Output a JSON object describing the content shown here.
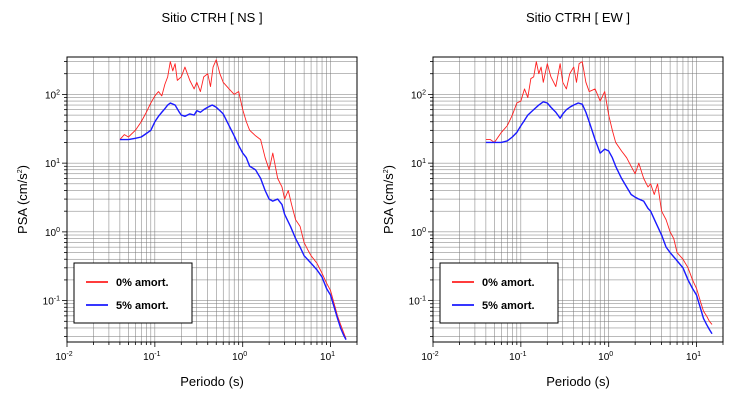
{
  "chart_data": [
    {
      "type": "line",
      "title": "Sitio CTRH [ NS ]",
      "xlabel": "Periodo (s)",
      "ylabel": "PSA (cm/s²)",
      "ylabel_base": "PSA (cm/s",
      "ylabel_sup": "2",
      "ylabel_close": ")",
      "xscale": "log",
      "yscale": "log",
      "xlim": [
        0.01,
        20
      ],
      "ylim": [
        0.025,
        350
      ],
      "grid": true,
      "legend_position": "bottom-left",
      "xticks": [
        {
          "base": "10",
          "exp": "-2"
        },
        {
          "base": "10",
          "exp": "-1"
        },
        {
          "base": "10",
          "exp": "0"
        },
        {
          "base": "10",
          "exp": "1"
        }
      ],
      "yticks": [
        {
          "base": "10",
          "exp": "-1"
        },
        {
          "base": "10",
          "exp": "0"
        },
        {
          "base": "10",
          "exp": "1"
        },
        {
          "base": "10",
          "exp": "2"
        }
      ],
      "series": [
        {
          "name": "0% amort.",
          "color": "#ff2020",
          "points": [
            [
              0.04,
              22
            ],
            [
              0.045,
              26
            ],
            [
              0.05,
              24
            ],
            [
              0.06,
              30
            ],
            [
              0.07,
              40
            ],
            [
              0.08,
              55
            ],
            [
              0.09,
              75
            ],
            [
              0.1,
              95
            ],
            [
              0.11,
              110
            ],
            [
              0.12,
              95
            ],
            [
              0.13,
              140
            ],
            [
              0.14,
              180
            ],
            [
              0.15,
              300
            ],
            [
              0.16,
              220
            ],
            [
              0.17,
              280
            ],
            [
              0.18,
              160
            ],
            [
              0.2,
              180
            ],
            [
              0.22,
              250
            ],
            [
              0.25,
              160
            ],
            [
              0.28,
              120
            ],
            [
              0.3,
              150
            ],
            [
              0.33,
              110
            ],
            [
              0.36,
              180
            ],
            [
              0.4,
              200
            ],
            [
              0.43,
              130
            ],
            [
              0.46,
              250
            ],
            [
              0.5,
              320
            ],
            [
              0.55,
              200
            ],
            [
              0.6,
              150
            ],
            [
              0.7,
              120
            ],
            [
              0.8,
              100
            ],
            [
              0.9,
              110
            ],
            [
              1.0,
              60
            ],
            [
              1.1,
              40
            ],
            [
              1.2,
              30
            ],
            [
              1.4,
              25
            ],
            [
              1.6,
              22
            ],
            [
              1.8,
              12
            ],
            [
              2.0,
              8
            ],
            [
              2.2,
              14
            ],
            [
              2.5,
              6
            ],
            [
              2.8,
              4.5
            ],
            [
              3.0,
              3
            ],
            [
              3.3,
              4
            ],
            [
              3.6,
              2.5
            ],
            [
              4.0,
              1.5
            ],
            [
              4.5,
              1.2
            ],
            [
              5.0,
              0.7
            ],
            [
              5.5,
              0.55
            ],
            [
              6.0,
              0.45
            ],
            [
              7.0,
              0.35
            ],
            [
              8.0,
              0.25
            ],
            [
              9.0,
              0.18
            ],
            [
              10,
              0.14
            ],
            [
              11,
              0.09
            ],
            [
              12,
              0.06
            ],
            [
              13,
              0.045
            ],
            [
              14,
              0.035
            ],
            [
              15,
              0.028
            ]
          ]
        },
        {
          "name": "5% amort.",
          "color": "#1a1aff",
          "points": [
            [
              0.04,
              22
            ],
            [
              0.05,
              22
            ],
            [
              0.06,
              23
            ],
            [
              0.07,
              24
            ],
            [
              0.08,
              27
            ],
            [
              0.09,
              30
            ],
            [
              0.1,
              40
            ],
            [
              0.11,
              48
            ],
            [
              0.12,
              55
            ],
            [
              0.13,
              62
            ],
            [
              0.14,
              70
            ],
            [
              0.15,
              75
            ],
            [
              0.17,
              70
            ],
            [
              0.19,
              55
            ],
            [
              0.2,
              50
            ],
            [
              0.22,
              48
            ],
            [
              0.25,
              52
            ],
            [
              0.28,
              50
            ],
            [
              0.3,
              58
            ],
            [
              0.33,
              55
            ],
            [
              0.36,
              60
            ],
            [
              0.4,
              65
            ],
            [
              0.45,
              70
            ],
            [
              0.5,
              65
            ],
            [
              0.55,
              58
            ],
            [
              0.6,
              52
            ],
            [
              0.7,
              35
            ],
            [
              0.8,
              25
            ],
            [
              0.9,
              18
            ],
            [
              1.0,
              14
            ],
            [
              1.1,
              12
            ],
            [
              1.2,
              9
            ],
            [
              1.4,
              8
            ],
            [
              1.6,
              6
            ],
            [
              1.8,
              4
            ],
            [
              2.0,
              3
            ],
            [
              2.2,
              2.8
            ],
            [
              2.5,
              3
            ],
            [
              2.8,
              2.5
            ],
            [
              3.0,
              1.8
            ],
            [
              3.5,
              1.2
            ],
            [
              4.0,
              0.8
            ],
            [
              4.5,
              0.6
            ],
            [
              5.0,
              0.45
            ],
            [
              6.0,
              0.35
            ],
            [
              7.0,
              0.28
            ],
            [
              8.0,
              0.22
            ],
            [
              9.0,
              0.15
            ],
            [
              10,
              0.12
            ],
            [
              11,
              0.08
            ],
            [
              12,
              0.055
            ],
            [
              13,
              0.04
            ],
            [
              14,
              0.032
            ],
            [
              15,
              0.027
            ]
          ]
        }
      ]
    },
    {
      "type": "line",
      "title": "Sitio CTRH [ EW ]",
      "xlabel": "Periodo (s)",
      "ylabel": "PSA (cm/s²)",
      "ylabel_base": "PSA (cm/s",
      "ylabel_sup": "2",
      "ylabel_close": ")",
      "xscale": "log",
      "yscale": "log",
      "xlim": [
        0.01,
        20
      ],
      "ylim": [
        0.025,
        350
      ],
      "grid": true,
      "legend_position": "bottom-left",
      "xticks": [
        {
          "base": "10",
          "exp": "-2"
        },
        {
          "base": "10",
          "exp": "-1"
        },
        {
          "base": "10",
          "exp": "0"
        },
        {
          "base": "10",
          "exp": "1"
        }
      ],
      "yticks": [
        {
          "base": "10",
          "exp": "-1"
        },
        {
          "base": "10",
          "exp": "0"
        },
        {
          "base": "10",
          "exp": "1"
        },
        {
          "base": "10",
          "exp": "2"
        }
      ],
      "series": [
        {
          "name": "0% amort.",
          "color": "#ff2020",
          "points": [
            [
              0.04,
              22
            ],
            [
              0.045,
              22
            ],
            [
              0.05,
              20
            ],
            [
              0.06,
              28
            ],
            [
              0.07,
              35
            ],
            [
              0.08,
              50
            ],
            [
              0.09,
              75
            ],
            [
              0.1,
              80
            ],
            [
              0.11,
              120
            ],
            [
              0.12,
              90
            ],
            [
              0.13,
              170
            ],
            [
              0.14,
              180
            ],
            [
              0.15,
              300
            ],
            [
              0.16,
              200
            ],
            [
              0.17,
              250
            ],
            [
              0.18,
              150
            ],
            [
              0.2,
              280
            ],
            [
              0.22,
              180
            ],
            [
              0.25,
              130
            ],
            [
              0.28,
              280
            ],
            [
              0.3,
              150
            ],
            [
              0.33,
              120
            ],
            [
              0.36,
              200
            ],
            [
              0.4,
              250
            ],
            [
              0.43,
              150
            ],
            [
              0.46,
              280
            ],
            [
              0.5,
              300
            ],
            [
              0.55,
              150
            ],
            [
              0.6,
              110
            ],
            [
              0.7,
              120
            ],
            [
              0.8,
              80
            ],
            [
              0.9,
              110
            ],
            [
              1.0,
              50
            ],
            [
              1.1,
              30
            ],
            [
              1.2,
              20
            ],
            [
              1.4,
              15
            ],
            [
              1.6,
              12
            ],
            [
              1.8,
              9
            ],
            [
              2.0,
              7
            ],
            [
              2.2,
              10
            ],
            [
              2.5,
              6
            ],
            [
              2.8,
              4.5
            ],
            [
              3.0,
              5
            ],
            [
              3.3,
              3.5
            ],
            [
              3.6,
              5
            ],
            [
              4.0,
              2
            ],
            [
              4.5,
              1.5
            ],
            [
              5.0,
              1
            ],
            [
              5.5,
              0.8
            ],
            [
              6.0,
              0.5
            ],
            [
              7.0,
              0.4
            ],
            [
              8.0,
              0.3
            ],
            [
              9.0,
              0.2
            ],
            [
              10,
              0.15
            ],
            [
              11,
              0.1
            ],
            [
              12,
              0.07
            ],
            [
              13,
              0.06
            ],
            [
              14,
              0.05
            ],
            [
              15,
              0.045
            ]
          ]
        },
        {
          "name": "5% amort.",
          "color": "#1a1aff",
          "points": [
            [
              0.04,
              20
            ],
            [
              0.05,
              20
            ],
            [
              0.06,
              20
            ],
            [
              0.07,
              21
            ],
            [
              0.08,
              24
            ],
            [
              0.09,
              28
            ],
            [
              0.1,
              35
            ],
            [
              0.11,
              42
            ],
            [
              0.12,
              50
            ],
            [
              0.13,
              55
            ],
            [
              0.14,
              60
            ],
            [
              0.16,
              70
            ],
            [
              0.18,
              78
            ],
            [
              0.2,
              75
            ],
            [
              0.22,
              65
            ],
            [
              0.25,
              55
            ],
            [
              0.28,
              45
            ],
            [
              0.3,
              52
            ],
            [
              0.33,
              60
            ],
            [
              0.36,
              65
            ],
            [
              0.4,
              70
            ],
            [
              0.45,
              75
            ],
            [
              0.5,
              72
            ],
            [
              0.55,
              55
            ],
            [
              0.6,
              40
            ],
            [
              0.7,
              22
            ],
            [
              0.8,
              14
            ],
            [
              0.9,
              16
            ],
            [
              1.0,
              15
            ],
            [
              1.1,
              12
            ],
            [
              1.2,
              9
            ],
            [
              1.4,
              6
            ],
            [
              1.6,
              4.5
            ],
            [
              1.8,
              3.5
            ],
            [
              2.0,
              3.2
            ],
            [
              2.2,
              3
            ],
            [
              2.5,
              2.8
            ],
            [
              2.8,
              2.2
            ],
            [
              3.0,
              2
            ],
            [
              3.5,
              1.3
            ],
            [
              4.0,
              0.9
            ],
            [
              4.5,
              0.6
            ],
            [
              5.0,
              0.5
            ],
            [
              6.0,
              0.38
            ],
            [
              7.0,
              0.3
            ],
            [
              8.0,
              0.2
            ],
            [
              9.0,
              0.15
            ],
            [
              10,
              0.12
            ],
            [
              11,
              0.08
            ],
            [
              12,
              0.055
            ],
            [
              13,
              0.045
            ],
            [
              14,
              0.038
            ],
            [
              15,
              0.033
            ]
          ]
        }
      ]
    }
  ]
}
